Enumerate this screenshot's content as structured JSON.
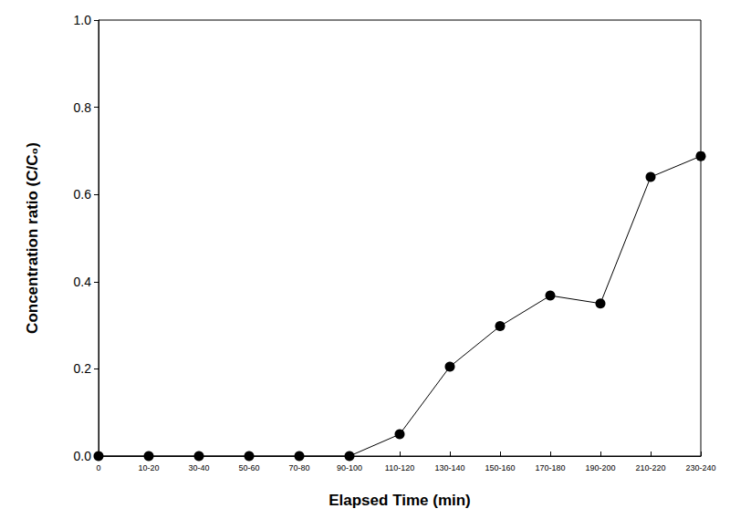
{
  "chart_data": {
    "type": "line",
    "x_label": "Elapsed Time (min)",
    "y_label": "Concentration ratio (C/C₀)",
    "categories": [
      "0",
      "10-20",
      "30-40",
      "50-60",
      "70-80",
      "90-100",
      "110-120",
      "130-140",
      "150-160",
      "170-180",
      "190-200",
      "210-220",
      "230-240"
    ],
    "values": [
      0,
      0,
      0,
      0,
      0,
      0,
      0.05,
      0.205,
      0.298,
      0.368,
      0.35,
      0.64,
      0.688
    ],
    "color": "#000000",
    "marker": "circle",
    "line_style": "solid",
    "ylim": [
      0,
      1
    ],
    "yticks": [
      {
        "value": 0,
        "label": "0.0"
      },
      0.2,
      0.4,
      0.6,
      0.8,
      {
        "value": 1,
        "label": "1.0"
      }
    ],
    "grid": false
  }
}
